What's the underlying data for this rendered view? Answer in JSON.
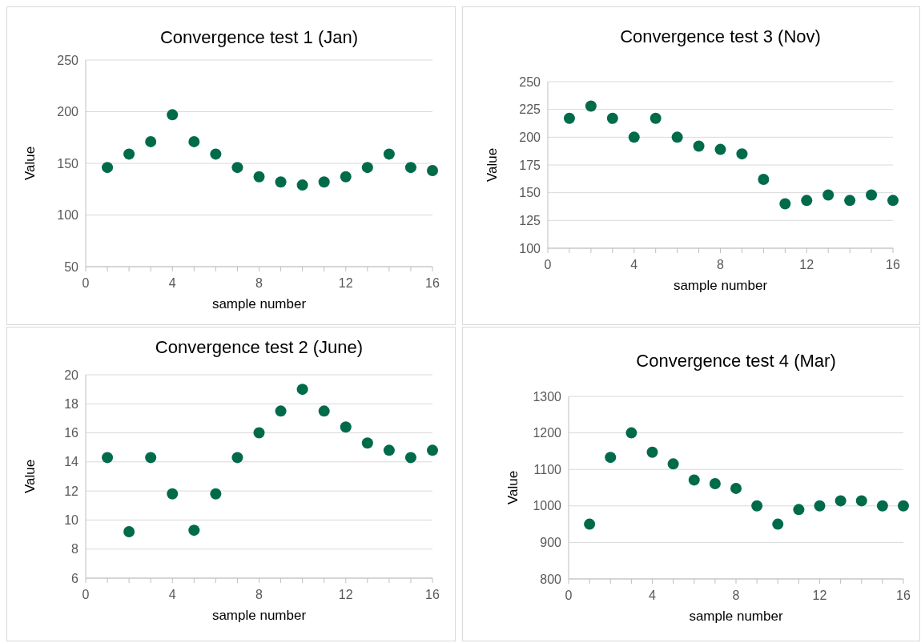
{
  "chart_data": [
    {
      "type": "scatter",
      "title": "Convergence test 1 (Jan)",
      "xlabel": "sample number",
      "ylabel": "Value",
      "x": [
        1,
        2,
        3,
        4,
        5,
        6,
        7,
        8,
        9,
        10,
        11,
        12,
        13,
        14,
        15,
        16
      ],
      "values": [
        146,
        159,
        171,
        197,
        171,
        159,
        146,
        137,
        132,
        129,
        132,
        137,
        146,
        159,
        146,
        143
      ],
      "color": "#006b4a",
      "xlim": [
        0,
        16
      ],
      "xticks": [
        0,
        {
          "value": 1,
          "label": null
        },
        {
          "value": 2,
          "label": null
        },
        {
          "value": 3,
          "label": null
        },
        4,
        {
          "value": 5,
          "label": null
        },
        {
          "value": 6,
          "label": null
        },
        {
          "value": 7,
          "label": null
        },
        8,
        {
          "value": 9,
          "label": null
        },
        {
          "value": 10,
          "label": null
        },
        {
          "value": 11,
          "label": null
        },
        12,
        {
          "value": 13,
          "label": null
        },
        {
          "value": 14,
          "label": null
        },
        {
          "value": 15,
          "label": null
        },
        16
      ],
      "ylim": [
        50,
        250
      ],
      "yticks": [
        50,
        100,
        150,
        200,
        250
      ],
      "grid": "y",
      "marker": "circle"
    },
    {
      "type": "scatter",
      "title": "Convergence test 3 (Nov)",
      "xlabel": "sample number",
      "ylabel": "Value",
      "x": [
        1,
        2,
        3,
        4,
        5,
        6,
        7,
        8,
        9,
        10,
        11,
        12,
        13,
        14,
        15,
        16
      ],
      "values": [
        217,
        228,
        217,
        200,
        217,
        200,
        192,
        189,
        185,
        162,
        140,
        143,
        148,
        143,
        148,
        143
      ],
      "color": "#006b4a",
      "xlim": [
        0,
        16
      ],
      "xticks": [
        0,
        {
          "value": 1,
          "label": null
        },
        {
          "value": 2,
          "label": null
        },
        {
          "value": 3,
          "label": null
        },
        4,
        {
          "value": 5,
          "label": null
        },
        {
          "value": 6,
          "label": null
        },
        {
          "value": 7,
          "label": null
        },
        8,
        {
          "value": 9,
          "label": null
        },
        {
          "value": 10,
          "label": null
        },
        {
          "value": 11,
          "label": null
        },
        12,
        {
          "value": 13,
          "label": null
        },
        {
          "value": 14,
          "label": null
        },
        {
          "value": 15,
          "label": null
        },
        16
      ],
      "ylim": [
        100,
        250
      ],
      "yticks": [
        100,
        125,
        150,
        175,
        200,
        225,
        250
      ],
      "grid": "y",
      "marker": "circle"
    },
    {
      "type": "scatter",
      "title": "Convergence test 2 (June)",
      "xlabel": "sample number",
      "ylabel": "Value",
      "x": [
        1,
        2,
        3,
        4,
        5,
        6,
        7,
        8,
        9,
        10,
        11,
        12,
        13,
        14,
        15,
        16
      ],
      "values": [
        14.3,
        9.2,
        14.3,
        11.8,
        9.3,
        11.8,
        14.3,
        16.0,
        17.5,
        19.0,
        17.5,
        16.4,
        15.3,
        14.8,
        14.3,
        14.8
      ],
      "color": "#006b4a",
      "xlim": [
        0,
        16
      ],
      "xticks": [
        0,
        {
          "value": 1,
          "label": null
        },
        {
          "value": 2,
          "label": null
        },
        {
          "value": 3,
          "label": null
        },
        4,
        {
          "value": 5,
          "label": null
        },
        {
          "value": 6,
          "label": null
        },
        {
          "value": 7,
          "label": null
        },
        8,
        {
          "value": 9,
          "label": null
        },
        {
          "value": 10,
          "label": null
        },
        {
          "value": 11,
          "label": null
        },
        12,
        {
          "value": 13,
          "label": null
        },
        {
          "value": 14,
          "label": null
        },
        {
          "value": 15,
          "label": null
        },
        16
      ],
      "ylim": [
        6,
        20
      ],
      "yticks": [
        6,
        8,
        10,
        12,
        14,
        16,
        18,
        20
      ],
      "grid": "y",
      "marker": "circle"
    },
    {
      "type": "scatter",
      "title": "Convergence test 4 (Mar)",
      "xlabel": "sample number",
      "ylabel": "Value",
      "x": [
        1,
        2,
        3,
        4,
        5,
        6,
        7,
        8,
        9,
        10,
        11,
        12,
        13,
        14,
        15,
        16
      ],
      "values": [
        950,
        1133,
        1200,
        1147,
        1115,
        1071,
        1061,
        1048,
        1000,
        950,
        990,
        1000,
        1014,
        1014,
        1000,
        1000
      ],
      "color": "#006b4a",
      "xlim": [
        0,
        16
      ],
      "xticks": [
        0,
        {
          "value": 1,
          "label": null
        },
        {
          "value": 2,
          "label": null
        },
        {
          "value": 3,
          "label": null
        },
        4,
        {
          "value": 5,
          "label": null
        },
        {
          "value": 6,
          "label": null
        },
        {
          "value": 7,
          "label": null
        },
        8,
        {
          "value": 9,
          "label": null
        },
        {
          "value": 10,
          "label": null
        },
        {
          "value": 11,
          "label": null
        },
        12,
        {
          "value": 13,
          "label": null
        },
        {
          "value": 14,
          "label": null
        },
        {
          "value": 15,
          "label": null
        },
        16
      ],
      "ylim": [
        800,
        1300
      ],
      "yticks": [
        800,
        900,
        1000,
        1100,
        1200,
        1300
      ],
      "grid": "y",
      "marker": "circle"
    }
  ]
}
